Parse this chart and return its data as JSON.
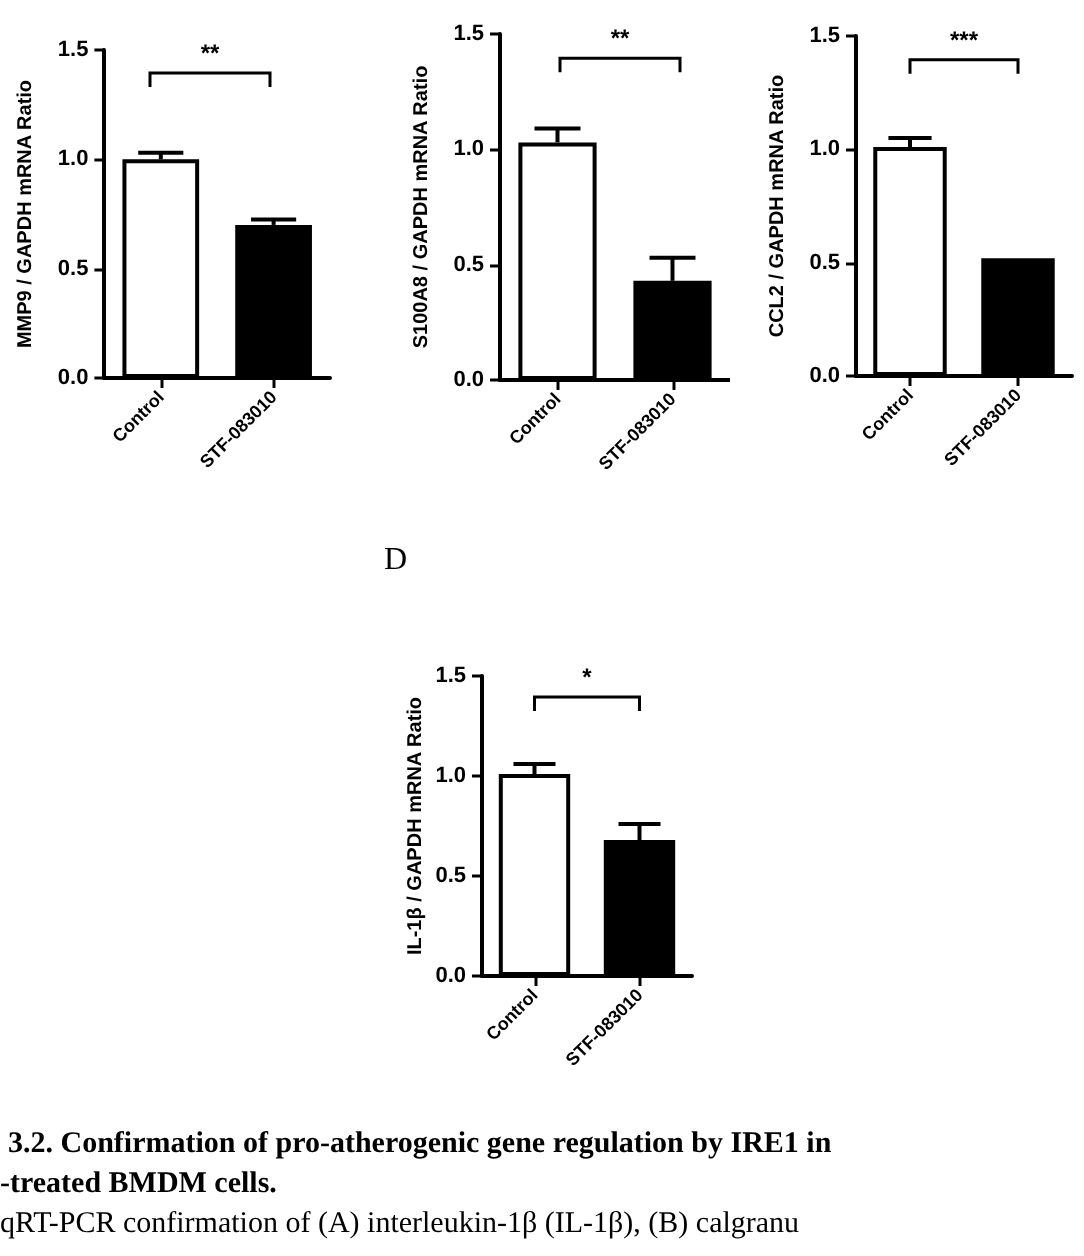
{
  "chart_data": [
    {
      "type": "bar",
      "ylabel": "MMP9 / GAPDH mRNA Ratio",
      "categories": [
        "Control",
        "STF-083010"
      ],
      "values": [
        1.0,
        0.7
      ],
      "errors": [
        0.03,
        0.025
      ],
      "colors": [
        "#ffffff",
        "#000000"
      ],
      "ylim": [
        0,
        1.5
      ],
      "yticks": [
        {
          "value": 0,
          "label": "0.0"
        },
        {
          "value": 0.5,
          "label": "0.5"
        },
        {
          "value": 1,
          "label": "1.0"
        },
        {
          "value": 1.5,
          "label": "1.5"
        }
      ],
      "annotations": [
        "**"
      ]
    },
    {
      "type": "bar",
      "ylabel": "S100A8 / GAPDH mRNA Ratio",
      "categories": [
        "Control",
        "STF-083010"
      ],
      "values": [
        1.03,
        0.43
      ],
      "errors": [
        0.06,
        0.1
      ],
      "colors": [
        "#ffffff",
        "#000000"
      ],
      "ylim": [
        0,
        1.5
      ],
      "yticks": [
        {
          "value": 0,
          "label": "0.0"
        },
        {
          "value": 0.5,
          "label": "0.5"
        },
        {
          "value": 1,
          "label": "1.0"
        },
        {
          "value": 1.5,
          "label": "1.5"
        }
      ],
      "annotations": [
        "**"
      ]
    },
    {
      "type": "bar",
      "ylabel": "CCL2 / GAPDH mRNA Ratio",
      "categories": [
        "Control",
        "STF-083010"
      ],
      "values": [
        1.01,
        0.52
      ],
      "errors": [
        0.04,
        null
      ],
      "colors": [
        "#ffffff",
        "#000000"
      ],
      "ylim": [
        0,
        1.5
      ],
      "yticks": [
        {
          "value": 0,
          "label": "0.0"
        },
        {
          "value": 0.5,
          "label": "0.5"
        },
        {
          "value": 1,
          "label": "1.0"
        },
        {
          "value": 1.5,
          "label": "1.5"
        }
      ],
      "annotations": [
        "***"
      ]
    },
    {
      "type": "bar",
      "title": "D",
      "ylabel": "IL-1β / GAPDH mRNA Ratio",
      "categories": [
        "Control",
        "STF-083010"
      ],
      "values": [
        1.01,
        0.68
      ],
      "errors": [
        0.05,
        0.08
      ],
      "colors": [
        "#ffffff",
        "#000000"
      ],
      "ylim": [
        0,
        1.5
      ],
      "yticks": [
        {
          "value": 0,
          "label": "0.0"
        },
        {
          "value": 0.5,
          "label": "0.5"
        },
        {
          "value": 1,
          "label": "1.0"
        },
        {
          "value": 1.5,
          "label": "1.5"
        }
      ],
      "annotations": [
        "*"
      ]
    },
    {
      "type": "other",
      "annotations": [
        "3.2. Confirmation of pro-atherogenic gene regulation by IRE1 in",
        "-treated BMDM cells.",
        "qRT-PCR confirmation of (A) interleukin-1β (IL-1β), (B) calgranu"
      ]
    }
  ]
}
